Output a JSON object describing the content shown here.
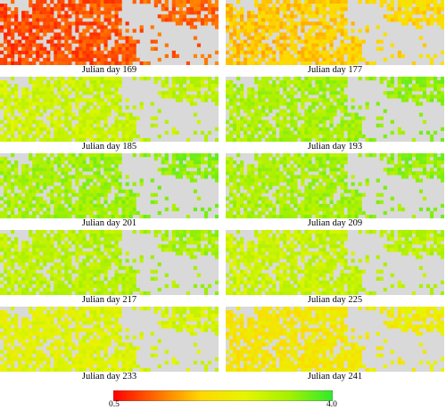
{
  "chart_data": {
    "type": "heatmap",
    "colorbar": {
      "min": 0.5,
      "max": 4.0,
      "min_label": "0.5",
      "max_label": "4.0",
      "colors": [
        "#ff0000",
        "#ff6f00",
        "#ffd700",
        "#e6f500",
        "#a6f000",
        "#2eea2e"
      ]
    },
    "panels": [
      {
        "caption": "Julian day 169",
        "mean_value": 1.05
      },
      {
        "caption": "Julian day 177",
        "mean_value": 1.9
      },
      {
        "caption": "Julian day 185",
        "mean_value": 2.95
      },
      {
        "caption": "Julian day 193",
        "mean_value": 3.3
      },
      {
        "caption": "Julian day 201",
        "mean_value": 3.35
      },
      {
        "caption": "Julian day 209",
        "mean_value": 3.3
      },
      {
        "caption": "Julian day 217",
        "mean_value": 3.15
      },
      {
        "caption": "Julian day 225",
        "mean_value": 3.0
      },
      {
        "caption": "Julian day 233",
        "mean_value": 2.7
      },
      {
        "caption": "Julian day 241",
        "mean_value": 2.3
      }
    ],
    "no_data_color": "#d9d9d9"
  }
}
